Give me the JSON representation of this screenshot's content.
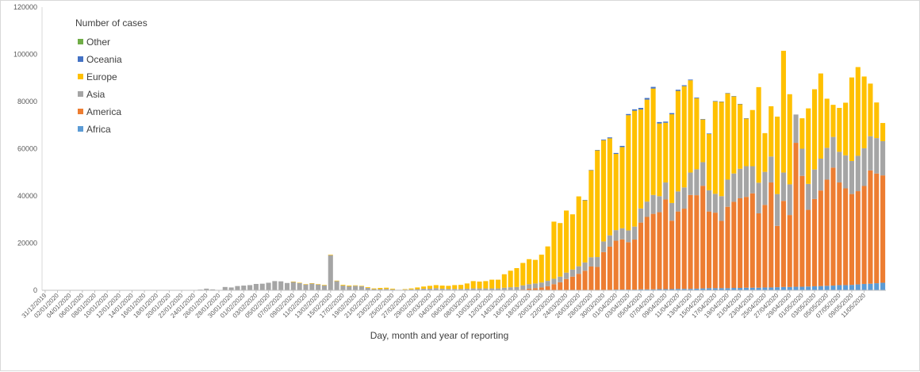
{
  "chart_data": {
    "type": "bar",
    "stacked": true,
    "xlabel": "Day, month and year of reporting",
    "ylabel": "",
    "ylim": [
      0,
      120000
    ],
    "yticks": [
      0,
      20000,
      40000,
      60000,
      80000,
      100000,
      120000
    ],
    "grid": false,
    "legend_title": "Number of cases",
    "legend_position": "top-left",
    "x_start": "2019-12-31",
    "x_end": "2020-05-12",
    "x_tick_labels": [
      "31/12/2019",
      "02/01/2020",
      "04/01/2020",
      "06/01/2020",
      "08/01/2020",
      "10/01/2020",
      "12/01/2020",
      "14/01/2020",
      "16/01/2020",
      "18/01/2020",
      "20/01/2020",
      "22/01/2020",
      "24/01/2020",
      "26/01/2020",
      "28/01/2020",
      "30/01/2020",
      "01/02/2020",
      "03/02/2020",
      "05/02/2020",
      "07/02/2020",
      "09/02/2020",
      "11/02/2020",
      "13/02/2020",
      "15/02/2020",
      "17/02/2020",
      "19/02/2020",
      "21/02/2020",
      "23/02/2020",
      "25/02/2020",
      "27/02/2020",
      "29/02/2020",
      "02/03/2020",
      "04/03/2020",
      "06/03/2020",
      "08/03/2020",
      "10/03/2020",
      "12/03/2020",
      "14/03/2020",
      "16/03/2020",
      "18/03/2020",
      "20/03/2020",
      "22/03/2020",
      "24/03/2020",
      "26/03/2020",
      "28/03/2020",
      "30/03/2020",
      "01/04/2020",
      "03/04/2020",
      "05/04/2020",
      "07/04/2020",
      "09/04/2020",
      "11/04/2020",
      "13/04/2020",
      "15/04/2020",
      "17/04/2020",
      "19/04/2020",
      "21/04/2020",
      "23/04/2020",
      "25/04/2020",
      "27/04/2020",
      "29/04/2020",
      "01/05/2020",
      "03/05/2020",
      "05/05/2020",
      "07/05/2020",
      "09/05/2020",
      "11/05/2020"
    ],
    "series": [
      {
        "name": "Other",
        "color": "#70ad47"
      },
      {
        "name": "Oceania",
        "color": "#4472c4"
      },
      {
        "name": "Europe",
        "color": "#ffc000"
      },
      {
        "name": "Asia",
        "color": "#a5a5a5"
      },
      {
        "name": "America",
        "color": "#ed7d31"
      },
      {
        "name": "Africa",
        "color": "#5b9bd5"
      }
    ],
    "totals": [
      0,
      0,
      0,
      0,
      0,
      0,
      0,
      0,
      0,
      0,
      0,
      0,
      0,
      0,
      0,
      0,
      0,
      0,
      0,
      0,
      0,
      0,
      0,
      0,
      0,
      300,
      700,
      400,
      0,
      1400,
      1200,
      1800,
      2000,
      2200,
      2700,
      2800,
      3200,
      3900,
      3800,
      3100,
      3700,
      3200,
      2600,
      3000,
      2600,
      2300,
      15100,
      4100,
      2300,
      2000,
      2100,
      1900,
      1300,
      800,
      1000,
      1100,
      700,
      200,
      500,
      800,
      1200,
      1600,
      1900,
      2200,
      2000,
      1900,
      2200,
      2300,
      2900,
      3900,
      3700,
      3900,
      4500,
      4500,
      6800,
      8300,
      9400,
      11600,
      13200,
      12900,
      15100,
      18600,
      29100,
      28500,
      33800,
      32200,
      39800,
      38300,
      51000,
      59500,
      63900,
      64800,
      58200,
      61200,
      74700,
      76700,
      77300,
      81500,
      86200,
      71300,
      71500,
      75100,
      85000,
      86900,
      89300,
      81700,
      72600,
      66500,
      80200,
      80000,
      83600,
      82300,
      79000,
      72900,
      76400,
      86100,
      66600,
      78000,
      73600,
      101500,
      83100,
      65500,
      72900,
      77100,
      85200,
      91900,
      81200,
      78600,
      77300,
      79500,
      90200,
      94600,
      90600,
      87600,
      79600,
      70900
    ],
    "asia": [
      0,
      0,
      0,
      0,
      0,
      0,
      0,
      0,
      0,
      0,
      0,
      0,
      0,
      0,
      0,
      0,
      0,
      0,
      0,
      0,
      0,
      0,
      0,
      0,
      0,
      300,
      700,
      400,
      0,
      1400,
      1200,
      1800,
      2000,
      2200,
      2700,
      2800,
      3200,
      3900,
      3800,
      3100,
      3600,
      3100,
      2500,
      2900,
      2500,
      2100,
      14900,
      3900,
      2000,
      1700,
      1900,
      1700,
      1000,
      500,
      500,
      600,
      400,
      200,
      300,
      400,
      500,
      700,
      700,
      900,
      700,
      600,
      600,
      600,
      700,
      800,
      800,
      800,
      800,
      800,
      1100,
      1300,
      1300,
      1800,
      1900,
      2000,
      2100,
      2300,
      2300,
      2400,
      2700,
      3000,
      3200,
      3500,
      3900,
      4200,
      4500,
      4800,
      4500,
      4700,
      5000,
      5500,
      6000,
      6500,
      8000,
      6800,
      7200,
      7500,
      8500,
      9000,
      9500,
      11000,
      10000,
      9000,
      8000,
      10500,
      11500,
      12000,
      12500,
      13000,
      11500,
      13000,
      14000,
      11000,
      13500,
      12000,
      13000,
      12000,
      11500,
      11000,
      12500,
      13500,
      13500,
      13000,
      13000,
      14000,
      14000,
      15000,
      16000,
      14500,
      15000,
      14500,
      15000
    ],
    "america": [
      0,
      0,
      0,
      0,
      0,
      0,
      0,
      0,
      0,
      0,
      0,
      0,
      0,
      0,
      0,
      0,
      0,
      0,
      0,
      0,
      0,
      0,
      0,
      0,
      0,
      0,
      0,
      0,
      0,
      0,
      0,
      0,
      0,
      0,
      0,
      0,
      0,
      0,
      0,
      0,
      0,
      0,
      0,
      0,
      0,
      0,
      0,
      0,
      0,
      0,
      0,
      0,
      0,
      0,
      0,
      0,
      0,
      0,
      0,
      0,
      0,
      0,
      0,
      0,
      0,
      0,
      0,
      0,
      0,
      0,
      0,
      0,
      0,
      0,
      0,
      0,
      100,
      300,
      700,
      900,
      1200,
      1700,
      2600,
      3400,
      4800,
      5800,
      7000,
      8200,
      10000,
      9800,
      16000,
      18300,
      20700,
      21300,
      20100,
      21200,
      28300,
      30700,
      32000,
      32600,
      38000,
      29000,
      32800,
      34000,
      39800,
      39600,
      43500,
      32500,
      32000,
      28500,
      34500,
      36500,
      38000,
      38500,
      40000,
      31500,
      35000,
      44500,
      26000,
      36500,
      30500,
      61000,
      47000,
      32500,
      37000,
      40500,
      45000,
      50000,
      43500,
      41000,
      38500,
      39500,
      41500,
      48000,
      46500,
      45500,
      35500,
      30500
    ],
    "africa": [
      0,
      0,
      0,
      0,
      0,
      0,
      0,
      0,
      0,
      0,
      0,
      0,
      0,
      0,
      0,
      0,
      0,
      0,
      0,
      0,
      0,
      0,
      0,
      0,
      0,
      0,
      0,
      0,
      0,
      0,
      0,
      0,
      0,
      0,
      0,
      0,
      0,
      0,
      0,
      0,
      0,
      0,
      0,
      0,
      0,
      0,
      0,
      0,
      0,
      0,
      0,
      0,
      0,
      0,
      0,
      0,
      0,
      0,
      0,
      0,
      0,
      0,
      0,
      0,
      0,
      0,
      0,
      0,
      0,
      0,
      0,
      0,
      0,
      0,
      0,
      0,
      0,
      0,
      0,
      0,
      0,
      0,
      0,
      0,
      0,
      0,
      0,
      100,
      100,
      100,
      200,
      200,
      300,
      300,
      300,
      300,
      400,
      400,
      400,
      500,
      500,
      500,
      600,
      600,
      600,
      700,
      800,
      900,
      900,
      900,
      900,
      1000,
      1000,
      1100,
      1100,
      1100,
      1200,
      1200,
      1300,
      1400,
      1400,
      1500,
      1500,
      1600,
      1700,
      1800,
      1900,
      2000,
      2200,
      2200,
      2300,
      2500,
      2700,
      2800,
      3000,
      3200,
      3400,
      3000,
      3000,
      3200
    ],
    "oceania": [
      0,
      0,
      0,
      0,
      0,
      0,
      0,
      0,
      0,
      0,
      0,
      0,
      0,
      0,
      0,
      0,
      0,
      0,
      0,
      0,
      0,
      0,
      0,
      0,
      0,
      0,
      0,
      0,
      0,
      0,
      0,
      0,
      0,
      0,
      0,
      0,
      0,
      0,
      0,
      0,
      0,
      0,
      0,
      0,
      0,
      0,
      0,
      0,
      0,
      0,
      0,
      0,
      0,
      0,
      0,
      0,
      0,
      0,
      0,
      0,
      0,
      0,
      0,
      0,
      0,
      0,
      0,
      0,
      0,
      0,
      0,
      0,
      0,
      0,
      0,
      0,
      0,
      0,
      0,
      0,
      0,
      0,
      0,
      0,
      0,
      0,
      0,
      100,
      100,
      200,
      300,
      400,
      400,
      500,
      500,
      600,
      700,
      700,
      700,
      600,
      500,
      500,
      500,
      400,
      300,
      300,
      200,
      200,
      200,
      100,
      100,
      100,
      100,
      100,
      0,
      0,
      0,
      0,
      0,
      0,
      0,
      0,
      0,
      0,
      0,
      0,
      0,
      0,
      0,
      0,
      0,
      0,
      0,
      0,
      0,
      0,
      0,
      0,
      0,
      0,
      0,
      0,
      0,
      0,
      0,
      0
    ]
  }
}
